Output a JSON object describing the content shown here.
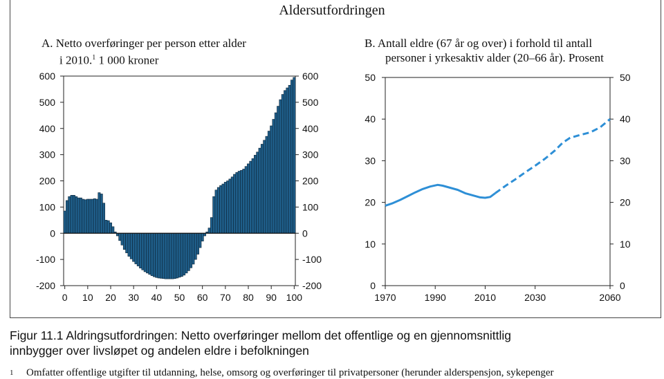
{
  "figure": {
    "main_title": "Aldersutfordringen",
    "caption_line1": "Figur 11.1  Aldringsutfordringen: Netto overføringer mellom det offentlige og en gjennomsnittlig",
    "caption_line2": "innbygger over livsløpet og andelen eldre i befolkningen",
    "footnote_mark": "1",
    "footnote_text": "Omfatter offentlige utgifter til utdanning, helse, omsorg og overføringer til privatpersoner (herunder alderspensjon, sykepenger"
  },
  "panel_a": {
    "title_line1": "A.  Netto overføringer per person etter alder",
    "title_line2_pre": "i 2010.",
    "title_sup": "1",
    "title_line2_post": " 1 000 kroner"
  },
  "panel_b": {
    "title_line1": "B.  Antall eldre (67 år og over) i forhold til antall",
    "title_line2": "personer i yrkesaktiv alder (20–66 år). Prosent"
  },
  "colors": {
    "bar_fill": "#1f5f8b",
    "bar_stroke": "#0c2233",
    "line": "#2e8fd6"
  },
  "chart_data": [
    {
      "type": "bar",
      "ylim": [
        -200,
        600
      ],
      "yticks": [
        -200,
        -100,
        0,
        100,
        200,
        300,
        400,
        500,
        600
      ],
      "xticks": [
        0,
        10,
        20,
        30,
        40,
        50,
        60,
        70,
        80,
        90,
        100
      ],
      "grid": false,
      "x": [
        0,
        1,
        2,
        3,
        4,
        5,
        6,
        7,
        8,
        9,
        10,
        11,
        12,
        13,
        14,
        15,
        16,
        17,
        18,
        19,
        20,
        21,
        22,
        23,
        24,
        25,
        26,
        27,
        28,
        29,
        30,
        31,
        32,
        33,
        34,
        35,
        36,
        37,
        38,
        39,
        40,
        41,
        42,
        43,
        44,
        45,
        46,
        47,
        48,
        49,
        50,
        51,
        52,
        53,
        54,
        55,
        56,
        57,
        58,
        59,
        60,
        61,
        62,
        63,
        64,
        65,
        66,
        67,
        68,
        69,
        70,
        71,
        72,
        73,
        74,
        75,
        76,
        77,
        78,
        79,
        80,
        81,
        82,
        83,
        84,
        85,
        86,
        87,
        88,
        89,
        90,
        91,
        92,
        93,
        94,
        95,
        96,
        97,
        98,
        99,
        100
      ],
      "values": [
        85,
        125,
        140,
        145,
        145,
        140,
        135,
        135,
        130,
        128,
        130,
        130,
        130,
        132,
        130,
        155,
        150,
        115,
        50,
        48,
        40,
        25,
        5,
        -10,
        -28,
        -45,
        -62,
        -75,
        -88,
        -98,
        -108,
        -117,
        -125,
        -133,
        -140,
        -147,
        -152,
        -157,
        -162,
        -166,
        -169,
        -171,
        -172,
        -173,
        -174,
        -174,
        -174,
        -174,
        -173,
        -171,
        -168,
        -165,
        -160,
        -152,
        -143,
        -132,
        -118,
        -100,
        -80,
        -55,
        -30,
        -10,
        5,
        20,
        60,
        140,
        165,
        175,
        182,
        188,
        195,
        200,
        207,
        215,
        225,
        232,
        237,
        240,
        245,
        255,
        265,
        275,
        285,
        298,
        310,
        325,
        340,
        355,
        370,
        390,
        410,
        435,
        460,
        485,
        510,
        530,
        545,
        555,
        565,
        585,
        595
      ]
    },
    {
      "type": "line",
      "ylim": [
        0,
        50
      ],
      "yticks": [
        0,
        10,
        20,
        30,
        40,
        50
      ],
      "xlim": [
        1970,
        2060
      ],
      "xticks": [
        1970,
        1990,
        2010,
        2030,
        2060
      ],
      "grid": false,
      "series": [
        {
          "style": "solid",
          "x": [
            1970,
            1973,
            1976,
            1979,
            1982,
            1985,
            1988,
            1991,
            1993,
            1996,
            1999,
            2002,
            2005,
            2008,
            2010,
            2012,
            2014
          ],
          "values": [
            19.2,
            19.8,
            20.6,
            21.5,
            22.4,
            23.2,
            23.8,
            24.2,
            24.0,
            23.5,
            23.0,
            22.2,
            21.7,
            21.2,
            21.1,
            21.3,
            22.2
          ]
        },
        {
          "style": "dashed",
          "x": [
            2014,
            2018,
            2022,
            2026,
            2030,
            2034,
            2038,
            2041,
            2044,
            2048,
            2052,
            2056,
            2060
          ],
          "values": [
            22.2,
            23.9,
            25.5,
            27.2,
            28.8,
            30.5,
            32.5,
            34.3,
            35.5,
            36.2,
            36.8,
            38.0,
            40.0
          ]
        }
      ]
    }
  ]
}
